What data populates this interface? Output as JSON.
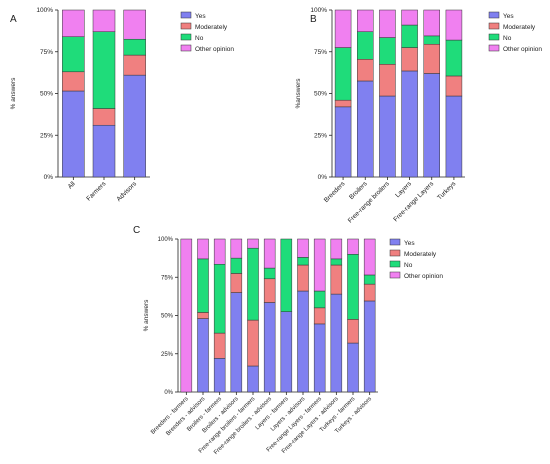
{
  "colors": {
    "Yes": "#8080f0",
    "Moderately": "#f08080",
    "No": "#1fdc7a",
    "Other opinion": "#f080f0"
  },
  "chart_data": [
    {
      "panel_label": "A",
      "type": "bar",
      "stacked": true,
      "ylabel": "% answers",
      "ylim": [
        0,
        100
      ],
      "yticks": [
        "0%",
        "25%",
        "50%",
        "75%",
        "100%"
      ],
      "categories": [
        "All",
        "Farmers",
        "Advisors"
      ],
      "series": [
        {
          "name": "Yes",
          "values": [
            51.5,
            31,
            61
          ]
        },
        {
          "name": "Moderately",
          "values": [
            11.5,
            10,
            12
          ]
        },
        {
          "name": "No",
          "values": [
            21,
            46,
            9.5
          ]
        },
        {
          "name": "Other opinion",
          "values": [
            16,
            13,
            17.5
          ]
        }
      ],
      "legend": [
        "Yes",
        "Moderately",
        "No",
        "Other opinion"
      ],
      "legend_position": "top-right"
    },
    {
      "panel_label": "B",
      "type": "bar",
      "stacked": true,
      "ylabel": "%answers",
      "ylim": [
        0,
        100
      ],
      "yticks": [
        "0%",
        "25%",
        "50%",
        "75%",
        "100%"
      ],
      "categories": [
        "Breeders",
        "Broilers",
        "Free-range broilers",
        "Layers",
        "Free-range Layers",
        "Turkeys"
      ],
      "series": [
        {
          "name": "Yes",
          "values": [
            42,
            57.5,
            48.5,
            63.5,
            62,
            48.5
          ]
        },
        {
          "name": "Moderately",
          "values": [
            4,
            13,
            19,
            14,
            17.5,
            12
          ]
        },
        {
          "name": "No",
          "values": [
            31.5,
            16.5,
            16,
            13.5,
            5,
            21.5
          ]
        },
        {
          "name": "Other opinion",
          "values": [
            22.5,
            13,
            16.5,
            9,
            15.5,
            18
          ]
        }
      ],
      "legend": [
        "Yes",
        "Moderately",
        "No",
        "Other opinion"
      ],
      "legend_position": "top-right"
    },
    {
      "panel_label": "C",
      "type": "bar",
      "stacked": true,
      "ylabel": "% answers",
      "ylim": [
        0,
        100
      ],
      "yticks": [
        "0%",
        "25%",
        "50%",
        "75%",
        "100%"
      ],
      "categories": [
        "Breeders - farmers",
        "Breeders - advisors",
        "Broilers - farmers",
        "Broilers - advisors",
        "Free-range broilers - farmers",
        "Free-range broilers - advisors",
        "Layers - farmers",
        "Layers - advisors",
        "Free-range Layers - farmers",
        "Free-range Layers - advisors",
        "Turkeys - farmers",
        "Turkeys - advisors"
      ],
      "series": [
        {
          "name": "Yes",
          "values": [
            0,
            48,
            22,
            65,
            17,
            58.5,
            52.5,
            66,
            44.5,
            64,
            32,
            59.5
          ]
        },
        {
          "name": "Moderately",
          "values": [
            0,
            4,
            16.5,
            12.5,
            30,
            15.5,
            0,
            17,
            10.5,
            19,
            15.5,
            11
          ]
        },
        {
          "name": "No",
          "values": [
            0,
            35,
            45,
            10,
            47,
            7,
            47.5,
            5,
            11,
            4,
            42.5,
            6
          ]
        },
        {
          "name": "Other opinion",
          "values": [
            100,
            13,
            16.5,
            12.5,
            6,
            19,
            0,
            12,
            34,
            13,
            10,
            23.5
          ]
        }
      ],
      "legend": [
        "Yes",
        "Moderately",
        "No",
        "Other opinion"
      ],
      "legend_position": "right"
    }
  ]
}
